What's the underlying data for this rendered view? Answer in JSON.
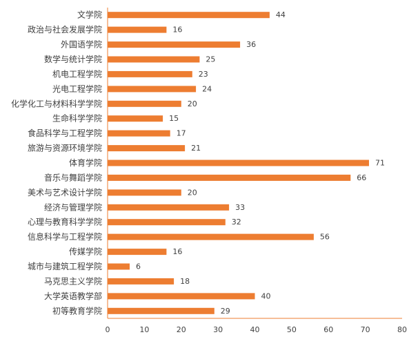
{
  "chart_data": {
    "type": "bar",
    "orientation": "horizontal",
    "title": "",
    "xlabel": "",
    "ylabel": "",
    "categories": [
      "文学院",
      "政治与社会发展学院",
      "外国语学院",
      "数学与统计学院",
      "机电工程学院",
      "光电工程学院",
      "化学化工与材料科学学院",
      "生命科学学院",
      "食品科学与工程学院",
      "旅游与资源环境学院",
      "体育学院",
      "音乐与舞蹈学院",
      "美术与艺术设计学院",
      "经济与管理学院",
      "心理与教育科学学院",
      "信息科学与工程学院",
      "传媒学院",
      "城市与建筑工程学院",
      "马克思主义学院",
      "大学英语教学部",
      "初等教育学院"
    ],
    "values": [
      44,
      16,
      36,
      25,
      23,
      24,
      20,
      15,
      17,
      21,
      71,
      66,
      20,
      33,
      32,
      56,
      16,
      6,
      18,
      40,
      29
    ],
    "xlim": [
      0,
      80
    ],
    "xticks": [
      0,
      10,
      20,
      30,
      40,
      50,
      60,
      70,
      80
    ],
    "bar_color": "#ED7D31",
    "axis_color": "#ED7D31",
    "text_color": "#404040",
    "grid": false,
    "legend": "none",
    "data_labels": true
  }
}
